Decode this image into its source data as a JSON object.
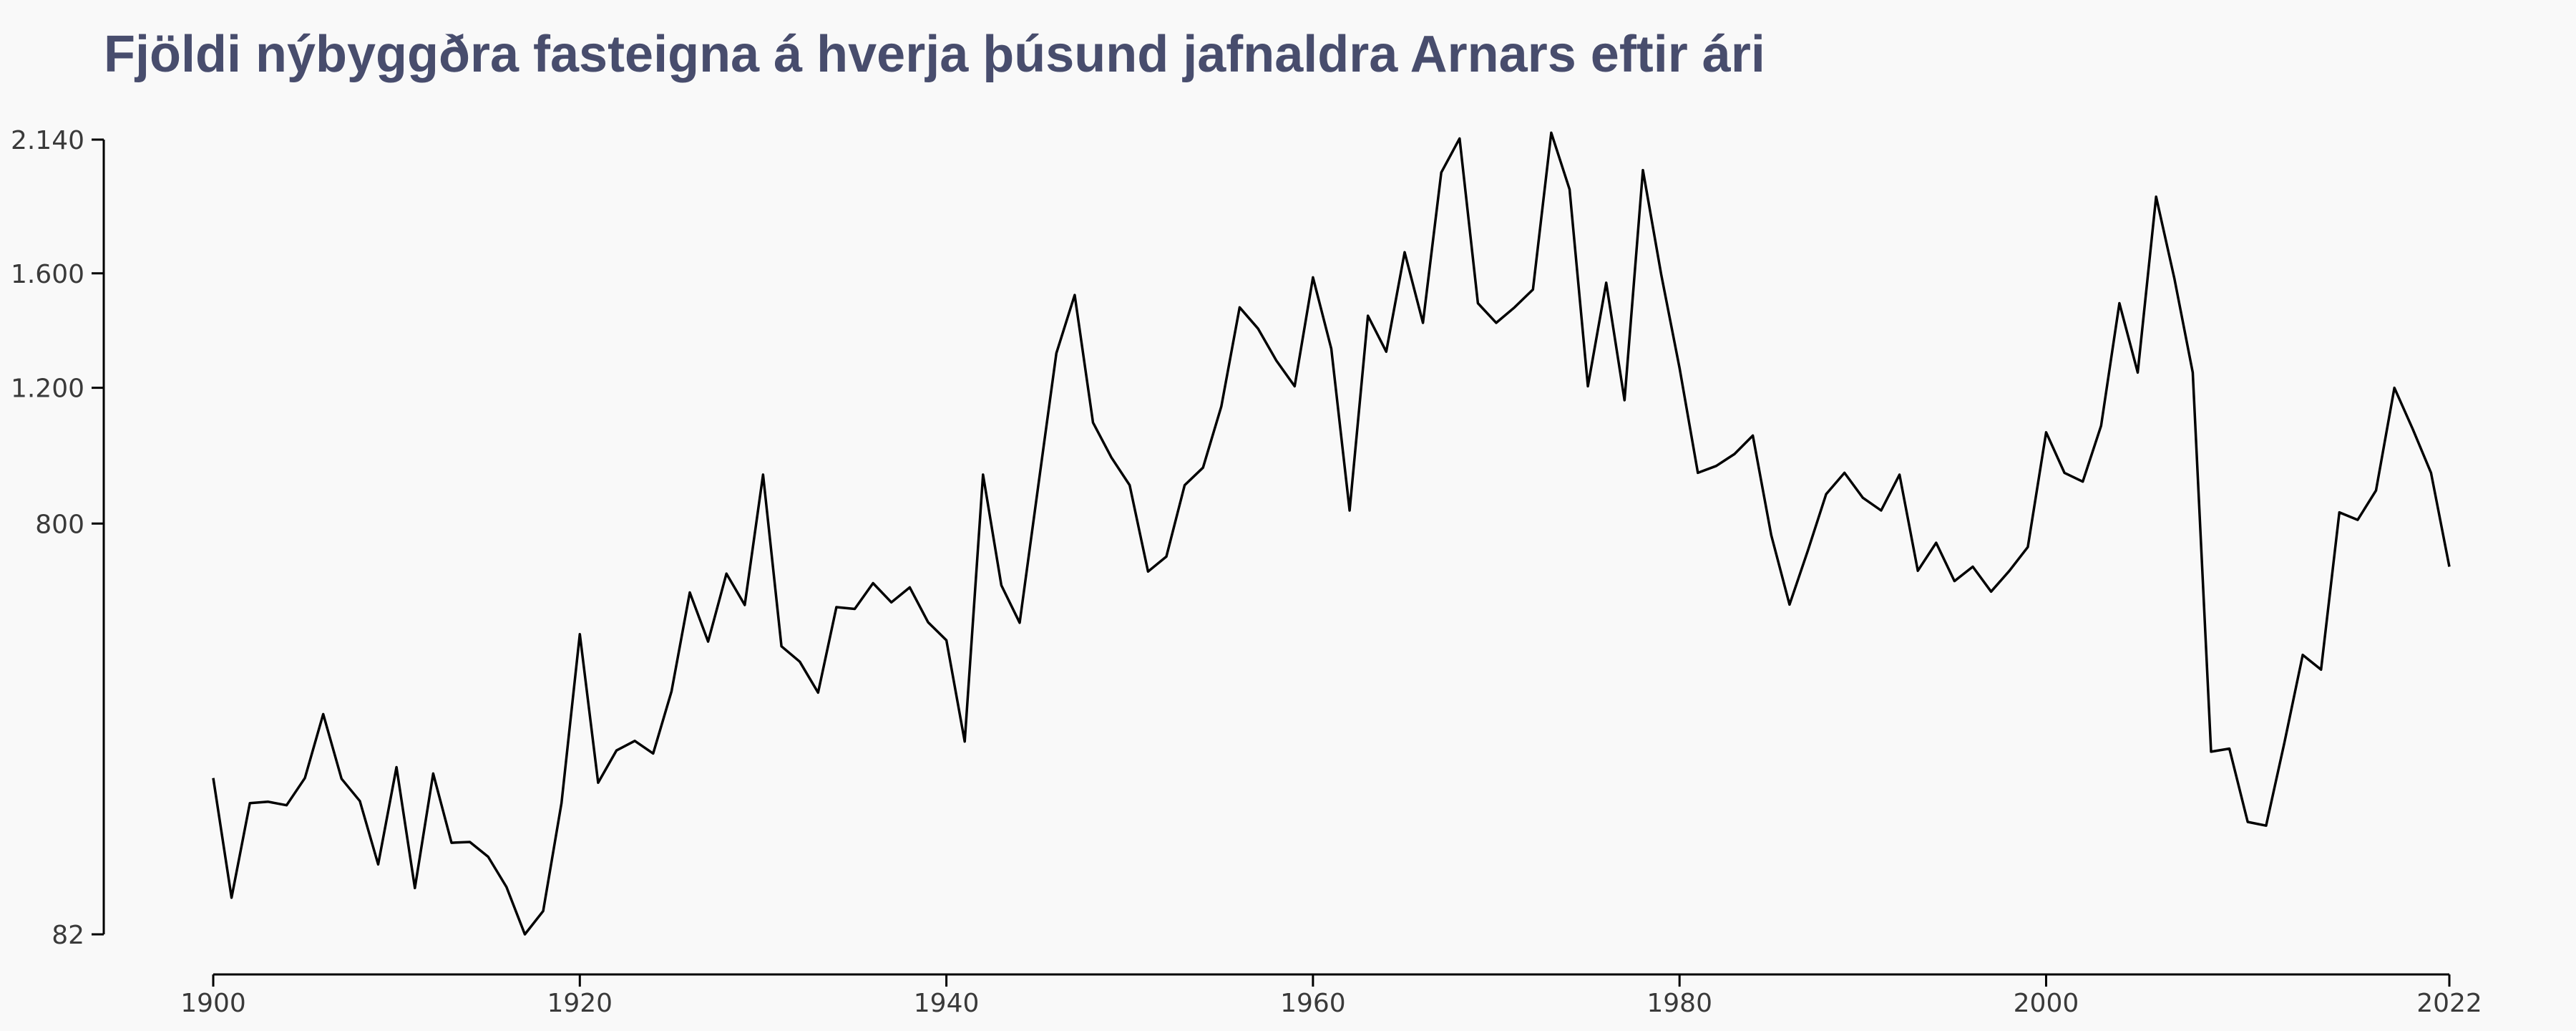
{
  "chart_data": {
    "type": "line",
    "title": "Fjöldi nýbyggðra fasteigna á hverja þúsund jafnaldra Arnars eftir ári",
    "xlabel": "",
    "ylabel": "",
    "xlim": [
      1900,
      2022
    ],
    "ylim": [
      82,
      2140
    ],
    "x_ticks": [
      1900,
      1920,
      1940,
      1960,
      1980,
      2000,
      2022
    ],
    "x_tick_labels": [
      "1900",
      "1920",
      "1940",
      "1960",
      "1980",
      "2000",
      "2022"
    ],
    "y_ticks": [
      82,
      800,
      1200,
      1600,
      2140
    ],
    "y_tick_labels": [
      "82",
      "800",
      "1.200",
      "1.600",
      "2.140"
    ],
    "grid": false,
    "line_color": "#000000",
    "title_color": "#484d6d",
    "series": [
      {
        "x": [
          1900,
          1901,
          1902,
          1903,
          1904,
          1905,
          1906,
          1907,
          1908,
          1909,
          1910,
          1911,
          1912,
          1913,
          1914,
          1915,
          1916,
          1917,
          1918,
          1919,
          1920,
          1921,
          1922,
          1923,
          1924,
          1925,
          1926,
          1927,
          1928,
          1929,
          1930,
          1931,
          1932,
          1933,
          1934,
          1935,
          1936,
          1937,
          1938,
          1939,
          1940,
          1941,
          1942,
          1943,
          1944,
          1945,
          1946,
          1947,
          1948,
          1949,
          1950,
          1951,
          1952,
          1953,
          1954,
          1955,
          1956,
          1957,
          1958,
          1959,
          1960,
          1961,
          1962,
          1963,
          1964,
          1965,
          1966,
          1967,
          1968,
          1969,
          1970,
          1971,
          1972,
          1973,
          1974,
          1975,
          1976,
          1977,
          1978,
          1979,
          1980,
          1981,
          1982,
          1983,
          1984,
          1985,
          1986,
          1987,
          1988,
          1989,
          1990,
          1991,
          1992,
          1993,
          1994,
          1995,
          1996,
          1997,
          1998,
          1999,
          2000,
          2001,
          2002,
          2003,
          2004,
          2005,
          2006,
          2007,
          2008,
          2009,
          2010,
          2011,
          2012,
          2013,
          2014,
          2015,
          2016,
          2017,
          2018,
          2019,
          2020,
          2021,
          2022
        ],
        "values": [
          268,
          116,
          231,
          233,
          228,
          268,
          375,
          267,
          234,
          152,
          285,
          126,
          275,
          178,
          179,
          161,
          127,
          82,
          103,
          231,
          534,
          261,
          312,
          328,
          307,
          417,
          628,
          518,
          673,
          599,
          935,
          508,
          476,
          415,
          594,
          590,
          650,
          605,
          640,
          560,
          521,
          327,
          935,
          645,
          559,
          899,
          1315,
          1520,
          1090,
          985,
          905,
          678,
          715,
          905,
          955,
          1140,
          1475,
          1400,
          1290,
          1205,
          1585,
          1330,
          835,
          1445,
          1320,
          1680,
          1420,
          2000,
          2145,
          1490,
          1420,
          1475,
          1540,
          2170,
          1930,
          1205,
          1565,
          1160,
          2010,
          1595,
          1265,
          940,
          960,
          995,
          1050,
          770,
          600,
          730,
          880,
          940,
          870,
          835,
          935,
          680,
          750,
          655,
          690,
          630,
          680,
          739,
          1060,
          940,
          915,
          1080,
          1490,
          1250,
          1900,
          1580,
          1250,
          310,
          315,
          205,
          200,
          325,
          490,
          460,
          830,
          810,
          890,
          1200,
          1070,
          940,
          690
        ]
      }
    ]
  }
}
